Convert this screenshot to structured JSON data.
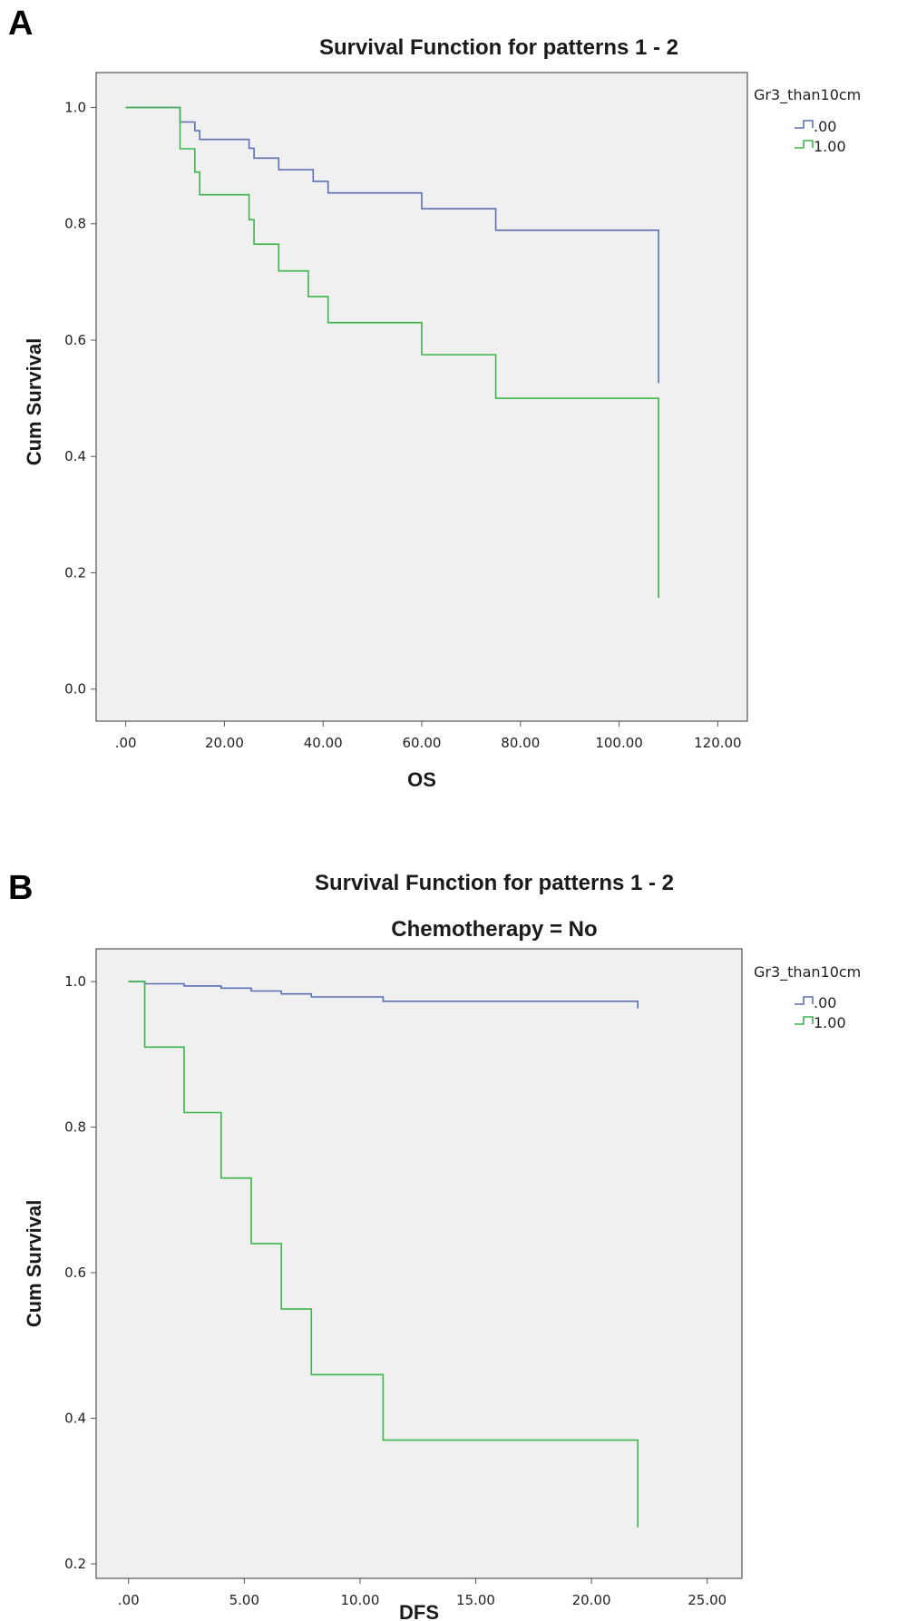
{
  "panels": {
    "a": {
      "letter": "A"
    },
    "b": {
      "letter": "B"
    }
  },
  "chart_data": [
    {
      "type": "line",
      "step": true,
      "title": "Survival Function for patterns 1 - 2",
      "subtitle": "",
      "xlabel": "OS",
      "ylabel": "Cum Survival",
      "xlim": [
        -6,
        126
      ],
      "ylim": [
        -0.055,
        1.06
      ],
      "xticks": [
        0,
        20,
        40,
        60,
        80,
        100,
        120
      ],
      "xtick_labels": [
        ".00",
        "20.00",
        "40.00",
        "60.00",
        "80.00",
        "100.00",
        "120.00"
      ],
      "yticks": [
        0.0,
        0.2,
        0.4,
        0.6,
        0.8,
        1.0
      ],
      "ytick_labels": [
        "0.0",
        "0.2",
        "0.4",
        "0.6",
        "0.8",
        "1.0"
      ],
      "grid": false,
      "legend": {
        "title": "Gr3_than10cm",
        "placement": "right"
      },
      "series": [
        {
          "name": ".00",
          "color": "#5b6fb5",
          "x": [
            0,
            11,
            14,
            15,
            25,
            26,
            27,
            31,
            38,
            41,
            60,
            75,
            108
          ],
          "y": [
            1.0,
            0.975,
            0.96,
            0.945,
            0.93,
            0.913,
            0.913,
            0.893,
            0.873,
            0.853,
            0.826,
            0.789,
            0.526
          ]
        },
        {
          "name": "1.00",
          "color": "#3cb54a",
          "x": [
            0,
            11,
            14,
            15,
            25,
            26,
            27,
            31,
            37,
            41,
            60,
            75,
            108
          ],
          "y": [
            1.0,
            0.929,
            0.889,
            0.85,
            0.807,
            0.765,
            0.765,
            0.719,
            0.675,
            0.63,
            0.575,
            0.5,
            0.157
          ]
        }
      ]
    },
    {
      "type": "line",
      "step": true,
      "title": "Survival Function for patterns 1 - 2",
      "subtitle": "Chemotherapy = No",
      "xlabel": "DFS",
      "ylabel": "Cum Survival",
      "xlim": [
        -1.4,
        26.5
      ],
      "ylim": [
        0.18,
        1.045
      ],
      "xticks": [
        0,
        5,
        10,
        15,
        20,
        25
      ],
      "xtick_labels": [
        ".00",
        "5.00",
        "10.00",
        "15.00",
        "20.00",
        "25.00"
      ],
      "yticks": [
        0.2,
        0.4,
        0.6,
        0.8,
        1.0
      ],
      "ytick_labels": [
        "0.2",
        "0.4",
        "0.6",
        "0.8",
        "1.0"
      ],
      "grid": false,
      "legend": {
        "title": "Gr3_than10cm",
        "placement": "right"
      },
      "series": [
        {
          "name": ".00",
          "color": "#5b6fb5",
          "x": [
            0,
            0.7,
            2.4,
            4.0,
            5.3,
            6.6,
            7.9,
            11.0,
            22.0
          ],
          "y": [
            1.0,
            0.997,
            0.994,
            0.991,
            0.987,
            0.983,
            0.979,
            0.973,
            0.963
          ]
        },
        {
          "name": "1.00",
          "color": "#3cb54a",
          "x": [
            0,
            0.7,
            2.4,
            4.0,
            5.3,
            6.6,
            7.9,
            11.0,
            22.0
          ],
          "y": [
            1.0,
            0.91,
            0.82,
            0.73,
            0.64,
            0.55,
            0.46,
            0.37,
            0.25
          ]
        }
      ]
    }
  ]
}
